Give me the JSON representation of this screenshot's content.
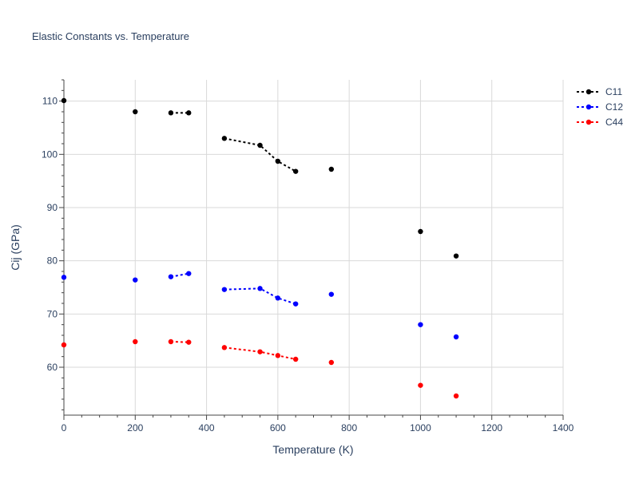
{
  "chart_data": {
    "type": "scatter",
    "title": "Elastic Constants vs. Temperature",
    "xlabel": "Temperature (K)",
    "ylabel": "Cij (GPa)",
    "xlim": [
      0,
      1400
    ],
    "ylim": [
      51,
      114
    ],
    "x_ticks": [
      0,
      200,
      400,
      600,
      800,
      1000,
      1200,
      1400
    ],
    "y_ticks": [
      60,
      70,
      80,
      90,
      100,
      110
    ],
    "grid": true,
    "legend_position": "top-right",
    "series": [
      {
        "name": "C11",
        "color": "#000000",
        "points": [
          [
            0,
            110.1
          ],
          [
            200,
            108.0
          ],
          [
            300,
            107.8
          ],
          [
            350,
            107.8
          ],
          [
            450,
            103.0
          ],
          [
            550,
            101.7
          ],
          [
            600,
            98.7
          ],
          [
            650,
            96.8
          ],
          [
            750,
            97.2
          ],
          [
            1000,
            85.5
          ],
          [
            1100,
            80.9
          ]
        ],
        "dotted_segments": [
          [
            2,
            3
          ],
          [
            4,
            7
          ]
        ]
      },
      {
        "name": "C12",
        "color": "#0000ff",
        "points": [
          [
            0,
            76.9
          ],
          [
            200,
            76.4
          ],
          [
            300,
            77.0
          ],
          [
            350,
            77.6
          ],
          [
            450,
            74.6
          ],
          [
            550,
            74.8
          ],
          [
            600,
            73.0
          ],
          [
            650,
            71.9
          ],
          [
            750,
            73.7
          ],
          [
            1000,
            68.0
          ],
          [
            1100,
            65.7
          ]
        ],
        "dotted_segments": [
          [
            2,
            3
          ],
          [
            4,
            7
          ]
        ]
      },
      {
        "name": "C44",
        "color": "#ff0000",
        "points": [
          [
            0,
            64.2
          ],
          [
            200,
            64.8
          ],
          [
            300,
            64.8
          ],
          [
            350,
            64.7
          ],
          [
            450,
            63.7
          ],
          [
            550,
            62.9
          ],
          [
            600,
            62.2
          ],
          [
            650,
            61.5
          ],
          [
            750,
            60.9
          ],
          [
            1000,
            56.6
          ],
          [
            1100,
            54.6
          ]
        ],
        "dotted_segments": [
          [
            2,
            3
          ],
          [
            4,
            7
          ]
        ]
      }
    ]
  }
}
